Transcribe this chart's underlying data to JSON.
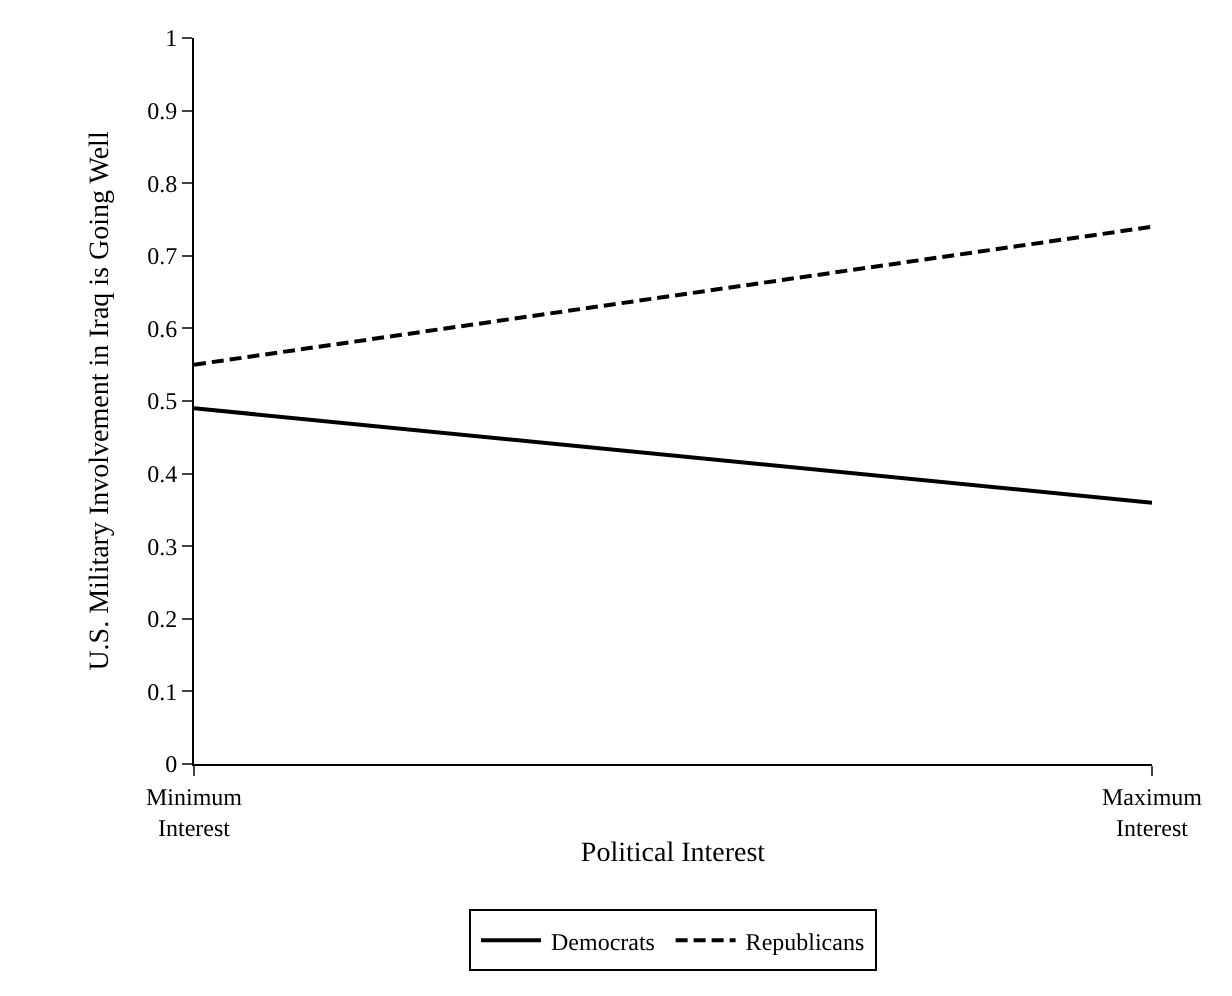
{
  "chart_data": {
    "type": "line",
    "xlabel": "Political Interest",
    "ylabel": "U.S. Military Involvement in Iraq is Going Well",
    "categories": [
      "Minimum\nInterest",
      "Maximum\nInterest"
    ],
    "series": [
      {
        "name": "Democrats",
        "color": "#000000",
        "line_style": "solid",
        "values": [
          0.49,
          0.36
        ]
      },
      {
        "name": "Republicans",
        "color": "#000000",
        "line_style": "dashed",
        "values": [
          0.55,
          0.74
        ]
      }
    ],
    "ylim": [
      0,
      1
    ],
    "yticks": [
      0,
      0.1,
      0.2,
      0.3,
      0.4,
      0.5,
      0.6,
      0.7,
      0.8,
      0.9,
      1
    ],
    "legend": "bottom",
    "marker": "none"
  }
}
